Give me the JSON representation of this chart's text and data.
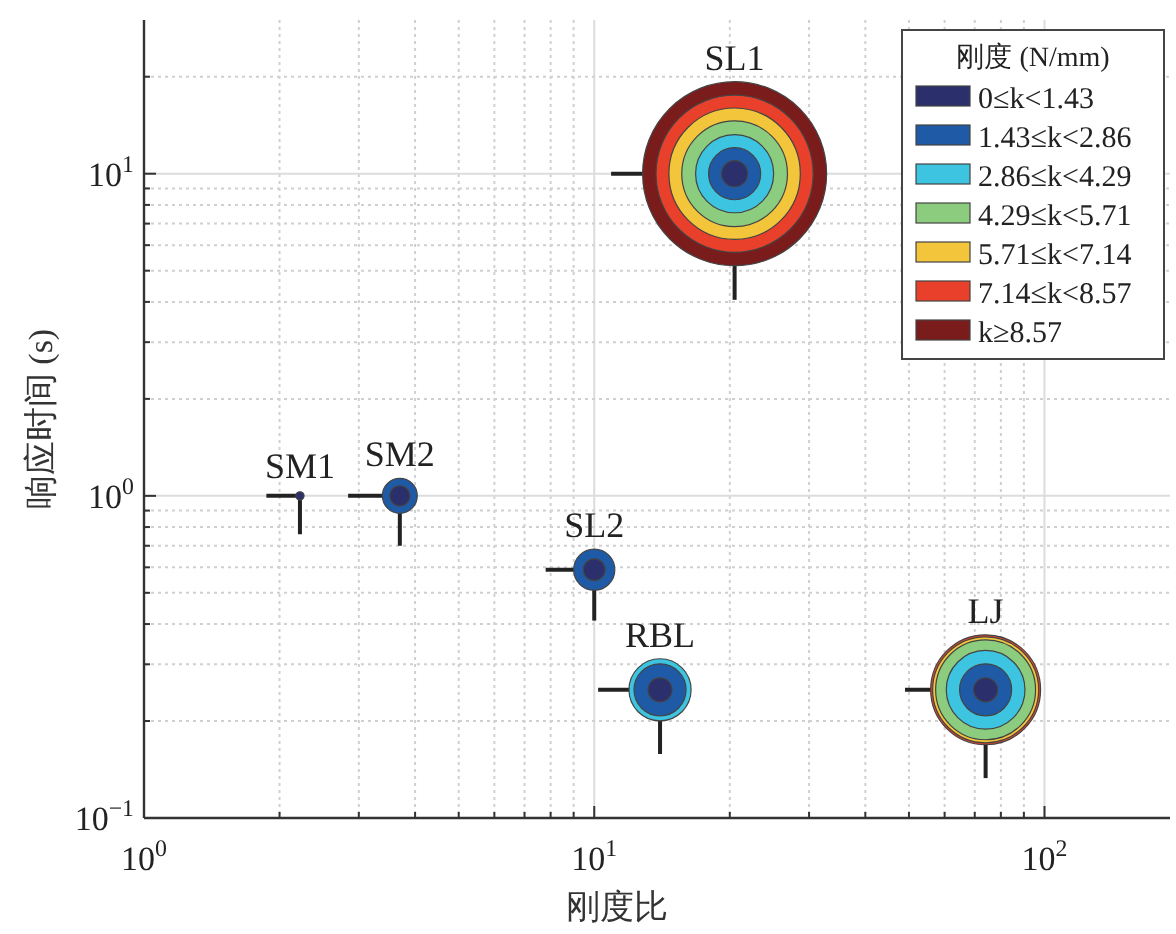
{
  "chart_data": {
    "type": "bubble",
    "xlabel": "刚度比",
    "ylabel": "响应时间 (s)",
    "legend_title": "刚度 (N/mm)",
    "log": "xy",
    "grid": true,
    "legend": "top right",
    "marker": "circle",
    "xlim": [
      1,
      190
    ],
    "ylim": [
      0.1,
      30
    ],
    "xticks": [
      {
        "value": 1,
        "label": "10$^{0}$"
      },
      {
        "value": 10,
        "label": "10$^{1}$"
      },
      {
        "value": 100,
        "label": "10$^{2}$"
      }
    ],
    "yticks": [
      {
        "value": 0.1,
        "label": "10$^{−1}$"
      },
      {
        "value": 1,
        "label": "10$^{0}$"
      },
      {
        "value": 10,
        "label": "10$^{1}$"
      }
    ],
    "x": [
      2.22,
      3.7,
      10,
      14,
      20.5,
      74
    ],
    "series": [
      {
        "name": "0≤k<1.43",
        "color": "#2b2f6b",
        "values": [
          1,
          1,
          0.59,
          0.25,
          10,
          0.25
        ],
        "sizes": [
          0.002,
          0.012,
          0.014,
          0.017,
          0.02,
          0.017
        ],
        "errors": [
          [
            0.76,
            1
          ],
          [
            0.7,
            1
          ],
          [
            0.41,
            0.59
          ],
          [
            0.158,
            0.25
          ],
          [
            4.06,
            10
          ],
          [
            0.133,
            0.25
          ]
        ],
        "xerrors": [
          [
            1.87,
            2.22
          ],
          [
            2.84,
            3.7
          ],
          [
            7.8,
            10
          ],
          [
            10.2,
            14
          ],
          [
            10.9,
            20.5
          ],
          [
            49,
            74
          ]
        ]
      },
      {
        "name": "1.43≤k<2.86",
        "color": "#1f5aa6",
        "values": [
          null,
          1,
          0.59,
          0.25,
          10,
          0.25
        ],
        "sizes": [
          null,
          0.036,
          0.05,
          0.08,
          0.08,
          0.08
        ]
      },
      {
        "name": "2.86≤k<4.29",
        "color": "#3cc4e0",
        "values": [
          null,
          null,
          null,
          0.25,
          10,
          0.25
        ],
        "sizes": [
          null,
          null,
          null,
          0.114,
          0.18,
          0.183
        ]
      },
      {
        "name": "4.29≤k<5.71",
        "color": "#8ccc7e",
        "values": [
          null,
          null,
          null,
          null,
          10,
          0.25
        ],
        "sizes": [
          null,
          null,
          null,
          null,
          0.33,
          0.295
        ]
      },
      {
        "name": "5.71≤k<7.14",
        "color": "#f2c53a",
        "values": [
          null,
          null,
          null,
          null,
          10,
          0.25
        ],
        "sizes": [
          null,
          null,
          null,
          null,
          0.51,
          0.332
        ]
      },
      {
        "name": "7.14≤k<8.57",
        "color": "#e8402a",
        "values": [
          null,
          null,
          null,
          null,
          10,
          0.25
        ],
        "sizes": [
          null,
          null,
          null,
          null,
          0.73,
          0.357
        ]
      },
      {
        "name": "k≥8.57",
        "color": "#7a1c1c",
        "values": [
          null,
          null,
          null,
          null,
          10,
          null
        ],
        "sizes": [
          null,
          null,
          null,
          null,
          1,
          null
        ]
      }
    ],
    "annotations": [
      {
        "text": "SM1",
        "x": 2.22,
        "y": 1
      },
      {
        "text": "SM2",
        "x": 3.7,
        "y": 1
      },
      {
        "text": "SL2",
        "x": 10,
        "y": 0.59
      },
      {
        "text": "RBL",
        "x": 14,
        "y": 0.25
      },
      {
        "text": "SL1",
        "x": 20.5,
        "y": 10
      },
      {
        "text": "LJ",
        "x": 74,
        "y": 0.25
      }
    ]
  }
}
